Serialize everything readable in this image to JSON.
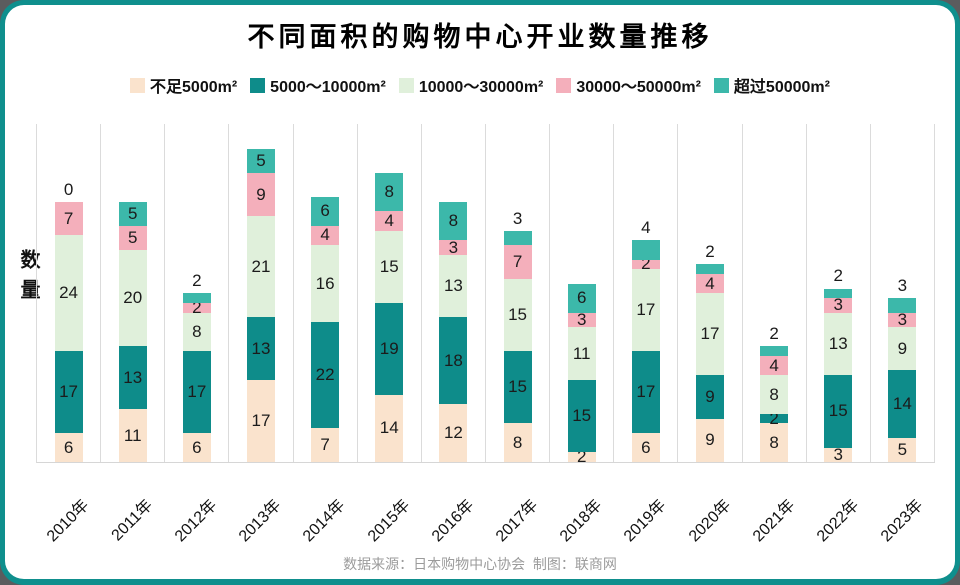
{
  "title": "不同面积的购物中心开业数量推移",
  "footer": "数据来源：日本购物中心协会  制图：联商网",
  "card": {
    "border_color": "#0F8F8D",
    "background": "#FFFFFF",
    "outside_background": "#5B5C5E"
  },
  "chart_data": {
    "type": "bar",
    "stacked": true,
    "title": "不同面积的购物中心开业数量推移",
    "ylabel": "数量",
    "xlabel": "",
    "legend_position": "top",
    "grid": "vertical column separators, light gray",
    "gridline_color": "#DBDBDB",
    "value_labels": "shown on each segment, black",
    "ylim": [
      0,
      70
    ],
    "categories": [
      "2010年",
      "2011年",
      "2012年",
      "2013年",
      "2014年",
      "2015年",
      "2016年",
      "2017年",
      "2018年",
      "2019年",
      "2020年",
      "2021年",
      "2022年",
      "2023年"
    ],
    "series": [
      {
        "name": "不足5000m²",
        "color": "#FAE3CD",
        "values": [
          6,
          11,
          6,
          17,
          7,
          14,
          12,
          8,
          2,
          6,
          9,
          8,
          3,
          5
        ]
      },
      {
        "name": "5000～10000m²",
        "color": "#0E8C8A",
        "values": [
          17,
          13,
          17,
          13,
          22,
          19,
          18,
          15,
          15,
          17,
          9,
          2,
          15,
          14
        ]
      },
      {
        "name": "10000～30000m²",
        "color": "#E0F0DB",
        "values": [
          24,
          20,
          8,
          21,
          16,
          15,
          13,
          15,
          11,
          17,
          17,
          8,
          13,
          9
        ]
      },
      {
        "name": "30000～50000m²",
        "color": "#F4AFBB",
        "values": [
          7,
          5,
          2,
          9,
          4,
          4,
          3,
          7,
          3,
          2,
          4,
          4,
          3,
          3
        ]
      },
      {
        "name": "超过50000m²",
        "color": "#3CB8AA",
        "values": [
          0,
          5,
          2,
          5,
          6,
          8,
          8,
          3,
          6,
          4,
          2,
          2,
          2,
          3
        ]
      }
    ],
    "totals": [
      54,
      54,
      35,
      65,
      55,
      60,
      54,
      48,
      37,
      46,
      41,
      24,
      36,
      34
    ]
  }
}
